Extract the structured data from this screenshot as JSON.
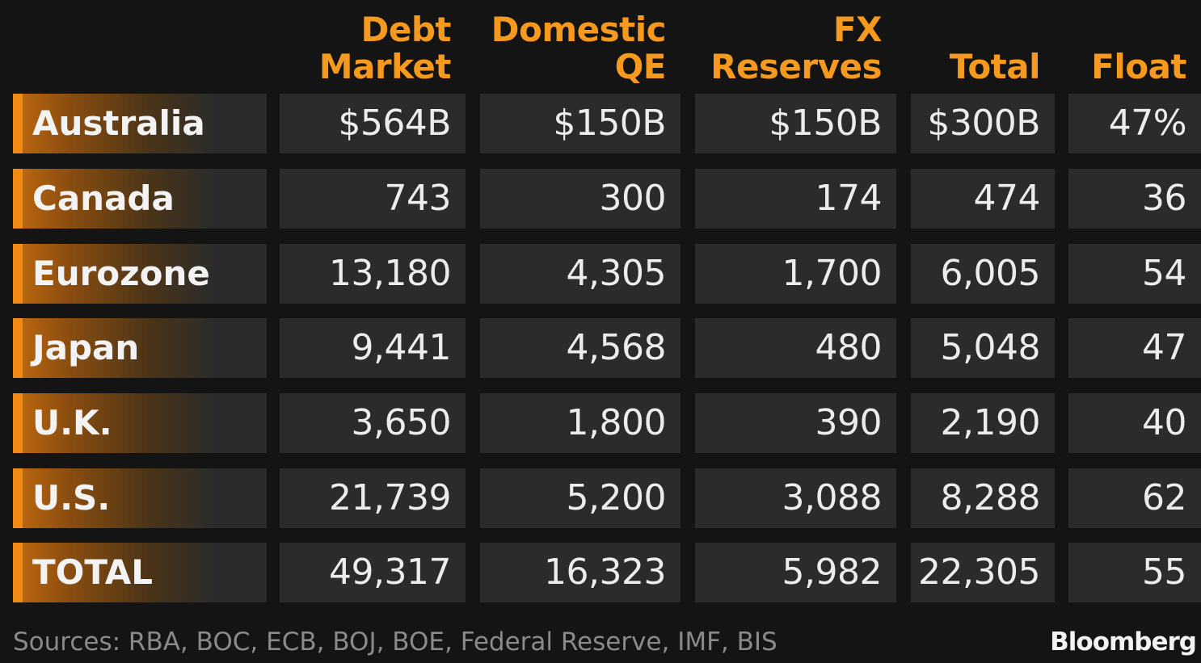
{
  "chart_data": {
    "type": "table",
    "columns": [
      {
        "lines": [
          "Debt",
          "Market"
        ]
      },
      {
        "lines": [
          "Domestic",
          "QE"
        ]
      },
      {
        "lines": [
          "FX",
          "Reserves"
        ]
      },
      {
        "lines": [
          "",
          "Total"
        ]
      },
      {
        "lines": [
          "",
          "Float"
        ]
      }
    ],
    "rows": [
      {
        "label": "Australia",
        "values": [
          "$564B",
          "$150B",
          "$150B",
          "$300B",
          "47%"
        ]
      },
      {
        "label": "Canada",
        "values": [
          "743",
          "300",
          "174",
          "474",
          "36"
        ]
      },
      {
        "label": "Eurozone",
        "values": [
          "13,180",
          "4,305",
          "1,700",
          "6,005",
          "54"
        ]
      },
      {
        "label": "Japan",
        "values": [
          "9,441",
          "4,568",
          "480",
          "5,048",
          "47"
        ]
      },
      {
        "label": "U.K.",
        "values": [
          "3,650",
          "1,800",
          "390",
          "2,190",
          "40"
        ]
      },
      {
        "label": "U.S.",
        "values": [
          "21,739",
          "5,200",
          "3,088",
          "8,288",
          "62"
        ]
      },
      {
        "label": "TOTAL",
        "values": [
          "49,317",
          "16,323",
          "5,982",
          "22,305",
          "55"
        ]
      }
    ],
    "colors": {
      "background": "#141414",
      "header_text": "#f59a1f",
      "cell_background": "#2b2b2b",
      "cell_text": "#ececec",
      "label_accent": "#f08a12"
    }
  },
  "footer": {
    "source": "Sources: RBA, BOC, ECB, BOJ, BOE, Federal Reserve, IMF, BIS",
    "brand": "Bloomberg"
  }
}
